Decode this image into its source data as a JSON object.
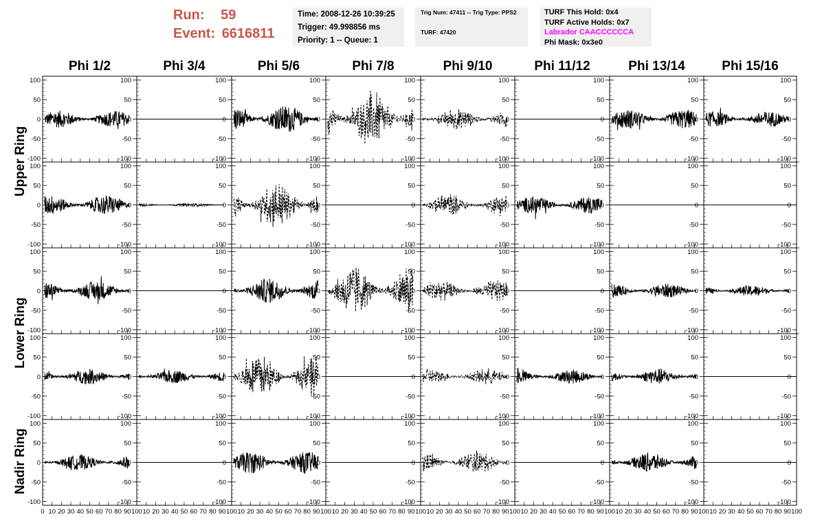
{
  "header": {
    "run_label": "Run:",
    "run_value": "59",
    "event_label": "Event:",
    "event_value": "6616811",
    "accent_color": "#c8564c",
    "time_line": "Time: 2008-12-26 10:39:25",
    "trigger_line": "Trigger: 49.998856 ms",
    "priority_line": "Priority: 1 -- Queue: 1",
    "trig_num_line": "Trig Num: 47411 -- Trig Type: PPS2",
    "turf_line": "TURF: 47420",
    "turf_hold_line": "TURF This Hold: 0x4",
    "turf_active_line": "TURF Active Holds: 0x7",
    "labrador_line": "Labrador CAACCCCCCA",
    "labrador_color": "#ff00ff",
    "phi_mask_line": "Phi Mask: 0x3e0"
  },
  "chart_data": {
    "type": "line",
    "title": "",
    "columns": [
      "Phi 1/2",
      "Phi 3/4",
      "Phi 5/6",
      "Phi 7/8",
      "Phi 9/10",
      "Phi 11/12",
      "Phi 13/14",
      "Phi 15/16"
    ],
    "row_groups": [
      "Upper Ring",
      "Lower Ring",
      "Nadir Ring"
    ],
    "rows": 5,
    "ylim": [
      -110,
      110
    ],
    "xlim": [
      0,
      100
    ],
    "y_ticks": [
      "100",
      "50",
      "0",
      "-50",
      "-100"
    ],
    "x_ticks": [
      "0",
      "10",
      "20",
      "30",
      "40",
      "50",
      "60",
      "70",
      "80",
      "90",
      "100"
    ],
    "grid": false,
    "panels": [
      [
        {
          "style": "solid",
          "amp": 22,
          "end": 100
        },
        {
          "style": "flat"
        },
        {
          "style": "solid",
          "amp": 35,
          "end": 100
        },
        {
          "style": "dashed",
          "amp": 55,
          "end": 100
        },
        {
          "style": "dashed",
          "amp": 22,
          "end": 100
        },
        {
          "style": "flat"
        },
        {
          "style": "solid",
          "amp": 25,
          "end": 100
        },
        {
          "style": "solid",
          "amp": 20,
          "end": 100
        }
      ],
      [
        {
          "style": "solid",
          "amp": 25,
          "end": 100
        },
        {
          "style": "solid",
          "amp": 4,
          "end": 100
        },
        {
          "style": "dashed",
          "amp": 45,
          "end": 100
        },
        {
          "style": "flat"
        },
        {
          "style": "dashed",
          "amp": 22,
          "end": 100
        },
        {
          "style": "solid",
          "amp": 22,
          "end": 100
        },
        {
          "style": "flat"
        },
        {
          "style": "flat"
        }
      ],
      [
        {
          "style": "solid",
          "amp": 25,
          "end": 100
        },
        {
          "style": "flat"
        },
        {
          "style": "solid",
          "amp": 32,
          "end": 100
        },
        {
          "style": "dashed",
          "amp": 50,
          "end": 100
        },
        {
          "style": "dashed",
          "amp": 22,
          "end": 100
        },
        {
          "style": "flat"
        },
        {
          "style": "solid",
          "amp": 18,
          "end": 100
        },
        {
          "style": "solid",
          "amp": 14,
          "end": 100
        }
      ],
      [
        {
          "style": "solid",
          "amp": 20,
          "end": 100
        },
        {
          "style": "solid",
          "amp": 17,
          "end": 100
        },
        {
          "style": "dashed",
          "amp": 42,
          "end": 100
        },
        {
          "style": "flat"
        },
        {
          "style": "dashed",
          "amp": 15,
          "end": 100
        },
        {
          "style": "solid",
          "amp": 18,
          "end": 100
        },
        {
          "style": "solid",
          "amp": 20,
          "end": 100
        },
        {
          "style": "flat"
        }
      ],
      [
        {
          "style": "solid",
          "amp": 20,
          "end": 100
        },
        {
          "style": "flat"
        },
        {
          "style": "solid",
          "amp": 28,
          "end": 100
        },
        {
          "style": "flat"
        },
        {
          "style": "dashed",
          "amp": 22,
          "end": 100
        },
        {
          "style": "flat"
        },
        {
          "style": "solid",
          "amp": 25,
          "end": 100
        },
        {
          "style": "flat"
        }
      ]
    ]
  }
}
